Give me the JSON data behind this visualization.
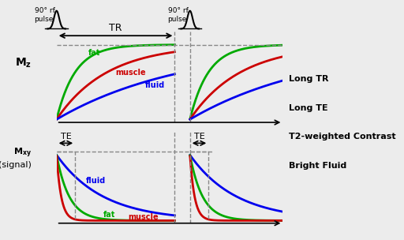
{
  "bg_color": "#ececec",
  "fat_color": "#00aa00",
  "muscle_color": "#cc0000",
  "fluid_color": "#0000ee",
  "t1_fat": 0.22,
  "t1_muscle": 0.6,
  "t1_fluid": 1.5,
  "t2_fat": 0.15,
  "t2_muscle": 0.055,
  "t2_fluid": 0.55,
  "annotations": [
    "Long TR",
    "Long TE",
    "T2-weighted Contrast",
    "Bright Fluid"
  ],
  "pulse_label_1": "90° rf\npulse",
  "pulse_label_2": "90° rf\npulse"
}
